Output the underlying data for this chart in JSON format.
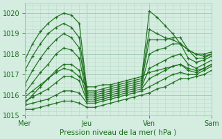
{
  "xlabel": "Pression niveau de la mer( hPa )",
  "bg_color": "#d4ede0",
  "grid_minor_color": "#b8d8c8",
  "grid_major_color": "#a0c8b0",
  "line_color": "#1a6e1a",
  "ylim": [
    1015.0,
    1020.5
  ],
  "xlim": [
    0,
    72
  ],
  "yticks": [
    1015,
    1016,
    1017,
    1018,
    1019,
    1020
  ],
  "xtick_positions": [
    0,
    24,
    48,
    72
  ],
  "xtick_labels": [
    "Mer",
    "Jeu",
    "Ven",
    "Sam"
  ],
  "forecast_lines": [
    {
      "x": [
        0,
        3,
        6,
        9,
        12,
        15,
        18,
        21,
        24,
        27,
        30,
        33,
        36,
        39,
        42,
        45,
        48,
        51,
        54,
        57,
        60,
        63,
        66,
        69,
        72
      ],
      "y": [
        1017.7,
        1018.5,
        1019.1,
        1019.5,
        1019.8,
        1020.0,
        1019.9,
        1019.5,
        1016.2,
        1016.2,
        1016.3,
        1016.4,
        1016.5,
        1016.6,
        1016.7,
        1016.8,
        1020.1,
        1019.8,
        1019.4,
        1019.0,
        1018.5,
        1018.2,
        1018.0,
        1018.0,
        1018.1
      ]
    },
    {
      "x": [
        0,
        3,
        6,
        9,
        12,
        15,
        18,
        21,
        24,
        27,
        30,
        33,
        36,
        39,
        42,
        45,
        48,
        51,
        54,
        57,
        60,
        63,
        66,
        69,
        72
      ],
      "y": [
        1017.2,
        1017.9,
        1018.5,
        1019.0,
        1019.3,
        1019.5,
        1019.3,
        1018.8,
        1016.1,
        1016.1,
        1016.2,
        1016.3,
        1016.4,
        1016.5,
        1016.6,
        1016.7,
        1019.2,
        1019.0,
        1018.8,
        1018.7,
        1018.5,
        1018.2,
        1018.0,
        1017.9,
        1018.0
      ]
    },
    {
      "x": [
        0,
        3,
        6,
        9,
        12,
        15,
        18,
        21,
        24,
        27,
        30,
        33,
        36,
        39,
        42,
        45,
        48,
        51,
        54,
        57,
        60,
        63,
        66,
        69,
        72
      ],
      "y": [
        1016.5,
        1017.2,
        1017.8,
        1018.3,
        1018.7,
        1019.0,
        1018.8,
        1018.3,
        1016.0,
        1016.0,
        1016.1,
        1016.2,
        1016.3,
        1016.4,
        1016.5,
        1016.6,
        1018.7,
        1018.7,
        1018.7,
        1018.8,
        1018.8,
        1018.2,
        1017.8,
        1017.8,
        1018.0
      ]
    },
    {
      "x": [
        0,
        3,
        6,
        9,
        12,
        15,
        18,
        21,
        24,
        27,
        30,
        33,
        36,
        39,
        42,
        45,
        48,
        51,
        54,
        57,
        60,
        63,
        66,
        69,
        72
      ],
      "y": [
        1016.1,
        1016.6,
        1017.1,
        1017.5,
        1018.0,
        1018.3,
        1018.2,
        1017.8,
        1015.9,
        1015.9,
        1016.0,
        1016.1,
        1016.2,
        1016.3,
        1016.4,
        1016.5,
        1018.0,
        1018.2,
        1018.3,
        1018.5,
        1018.5,
        1017.8,
        1017.6,
        1017.7,
        1017.9
      ]
    },
    {
      "x": [
        0,
        3,
        6,
        9,
        12,
        15,
        18,
        21,
        24,
        27,
        30,
        33,
        36,
        39,
        42,
        45,
        48,
        51,
        54,
        57,
        60,
        63,
        66,
        69,
        72
      ],
      "y": [
        1015.9,
        1016.2,
        1016.5,
        1016.8,
        1017.2,
        1017.5,
        1017.5,
        1017.2,
        1015.8,
        1015.8,
        1015.9,
        1016.0,
        1016.1,
        1016.2,
        1016.3,
        1016.4,
        1017.3,
        1017.5,
        1017.7,
        1017.9,
        1018.0,
        1017.5,
        1017.3,
        1017.5,
        1017.7
      ]
    },
    {
      "x": [
        0,
        3,
        6,
        9,
        12,
        15,
        18,
        21,
        24,
        27,
        30,
        33,
        36,
        39,
        42,
        45,
        48,
        51,
        54,
        57,
        60,
        63,
        66,
        69,
        72
      ],
      "y": [
        1015.7,
        1015.9,
        1016.1,
        1016.3,
        1016.6,
        1016.9,
        1016.9,
        1016.7,
        1015.7,
        1015.7,
        1015.8,
        1015.9,
        1016.0,
        1016.1,
        1016.2,
        1016.3,
        1016.8,
        1017.0,
        1017.2,
        1017.4,
        1017.5,
        1017.2,
        1017.1,
        1017.3,
        1017.5
      ]
    },
    {
      "x": [
        0,
        3,
        6,
        9,
        12,
        15,
        18,
        21,
        24,
        27,
        30,
        33,
        36,
        39,
        42,
        45,
        48,
        51,
        54,
        57,
        60,
        63,
        66,
        69,
        72
      ],
      "y": [
        1015.5,
        1015.6,
        1015.7,
        1015.8,
        1016.0,
        1016.2,
        1016.2,
        1016.1,
        1015.6,
        1015.6,
        1015.7,
        1015.8,
        1015.9,
        1016.0,
        1016.1,
        1016.2,
        1016.4,
        1016.6,
        1016.8,
        1017.0,
        1017.1,
        1017.0,
        1017.0,
        1017.2,
        1017.4
      ]
    },
    {
      "x": [
        0,
        3,
        6,
        9,
        12,
        15,
        18,
        21,
        24,
        27,
        30,
        33,
        36,
        39,
        42,
        45,
        48,
        51,
        54,
        57,
        60,
        63,
        66,
        69,
        72
      ],
      "y": [
        1015.3,
        1015.3,
        1015.4,
        1015.5,
        1015.6,
        1015.7,
        1015.7,
        1015.6,
        1015.4,
        1015.4,
        1015.5,
        1015.6,
        1015.7,
        1015.8,
        1015.9,
        1016.0,
        1016.1,
        1016.3,
        1016.4,
        1016.6,
        1016.8,
        1016.8,
        1016.9,
        1017.0,
        1017.2
      ]
    },
    {
      "x": [
        0,
        3,
        6,
        9,
        12,
        15,
        18,
        21,
        24,
        27,
        30,
        33,
        36,
        39,
        42,
        45,
        48,
        51,
        54,
        57,
        60,
        63,
        66,
        69,
        72
      ],
      "y": [
        1015.6,
        1016.0,
        1016.4,
        1016.8,
        1017.1,
        1017.3,
        1017.2,
        1016.9,
        1016.4,
        1016.4,
        1016.5,
        1016.5,
        1016.6,
        1016.7,
        1016.8,
        1016.9,
        1017.1,
        1017.2,
        1017.3,
        1017.4,
        1017.5,
        1017.3,
        1017.2,
        1017.3,
        1017.5
      ]
    }
  ]
}
